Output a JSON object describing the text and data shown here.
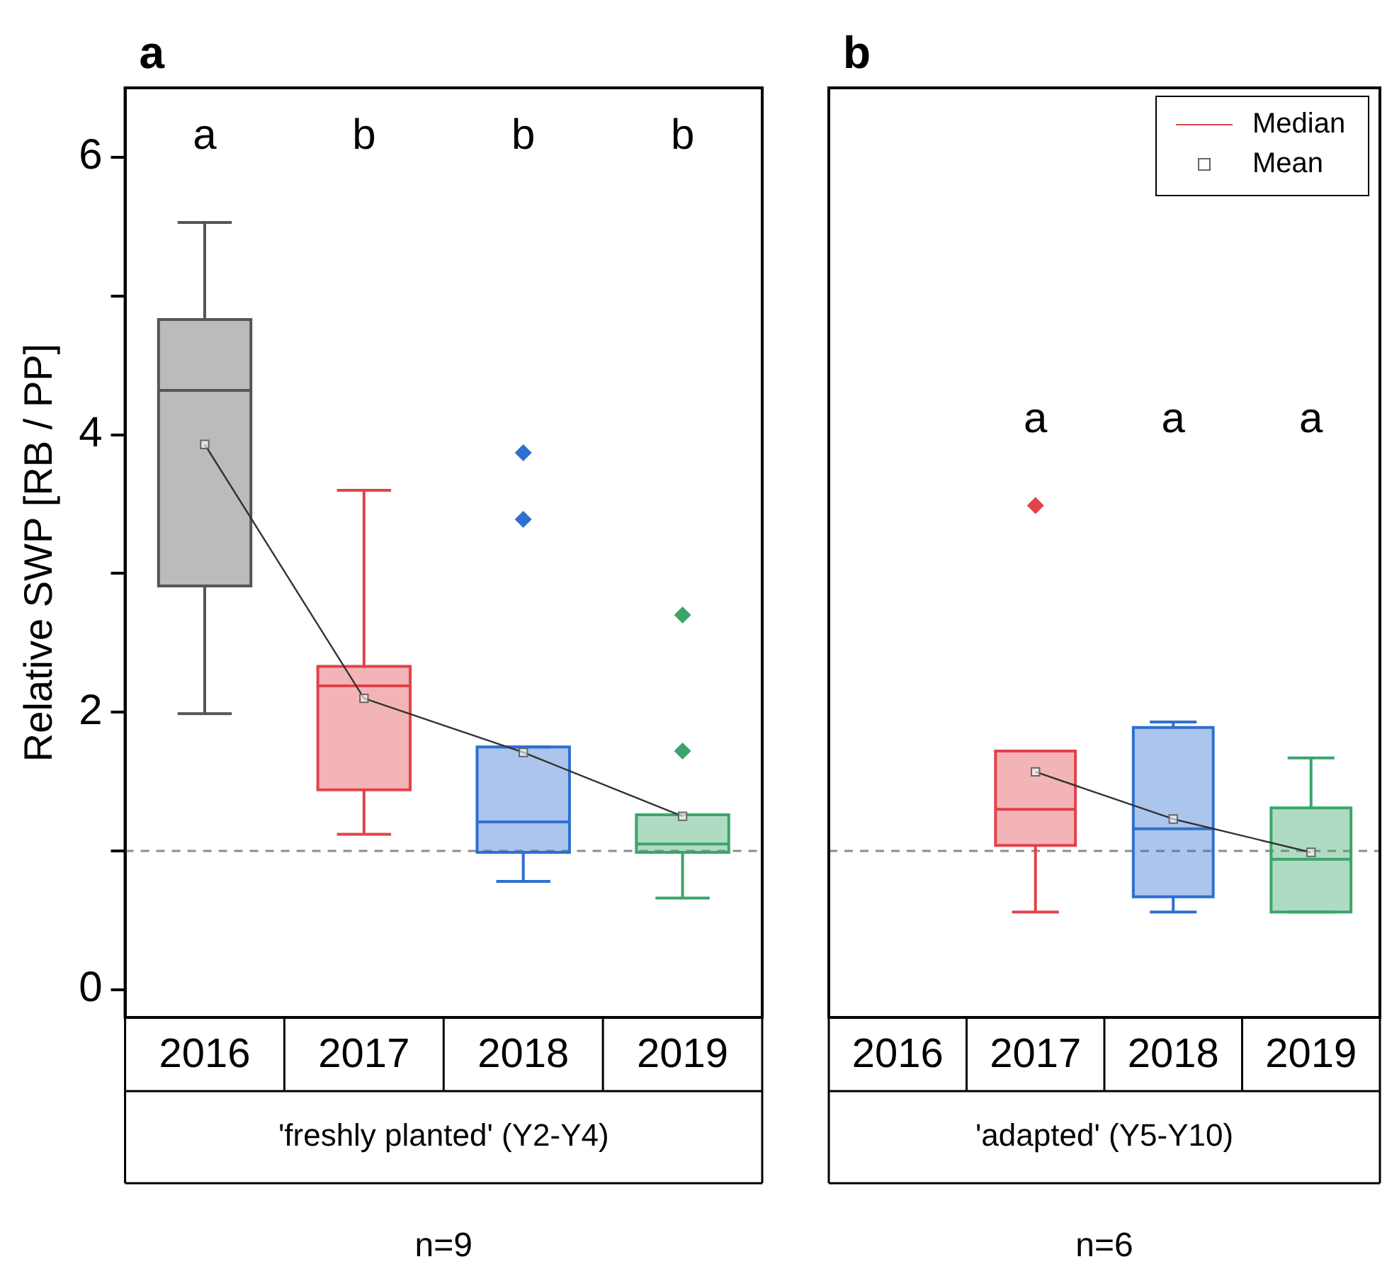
{
  "chart_data": [
    {
      "type": "box",
      "title": "a",
      "ylabel": "Relative SWP [RB / PP]",
      "xlabel": "'freshly planted' (Y2-Y4)",
      "categories": [
        "2016",
        "2017",
        "2018",
        "2019"
      ],
      "ylim": [
        -0.2,
        6.5
      ],
      "yticks": [
        0,
        {
          "value": 1,
          "label": null
        },
        2,
        {
          "value": 3,
          "label": null
        },
        4,
        {
          "value": 5,
          "label": null
        },
        6
      ],
      "ref_lines": [
        {
          "axis": "y",
          "value": 1,
          "color": "#8c8c8c",
          "line_style": "dashed"
        }
      ],
      "legend": false,
      "annotations": [
        "a",
        "b",
        "b",
        "b",
        "n=9"
      ],
      "series": [
        {
          "colors": [
            "#555555",
            "#e0434b",
            "#2f6fcf",
            "#3aa56a"
          ],
          "boxes": [
            {
              "low": 1.99,
              "q1": 2.91,
              "median": 4.32,
              "q3": 4.83,
              "high": 5.53
            },
            {
              "low": 1.12,
              "q1": 1.44,
              "median": 2.19,
              "q3": 2.33,
              "high": 3.6
            },
            {
              "low": 0.78,
              "q1": 0.99,
              "median": 1.21,
              "q3": 1.75,
              "high": 1.75,
              "outliers": [
                3.87,
                3.39
              ]
            },
            {
              "low": 0.66,
              "q1": 0.99,
              "median": 1.05,
              "q3": 1.26,
              "high": 1.26,
              "outliers": [
                2.7,
                1.72
              ]
            }
          ]
        },
        {
          "type": "line",
          "color": "#333333",
          "marker": "square",
          "values": [
            3.93,
            2.1,
            1.71,
            1.25
          ]
        }
      ]
    },
    {
      "type": "box",
      "title": "b",
      "xlabel": "'adapted' (Y5-Y10)",
      "categories": [
        "2016",
        "2017",
        "2018",
        "2019"
      ],
      "ylim": [
        -0.2,
        6.5
      ],
      "tick_labels": "x",
      "ref_lines": [
        {
          "axis": "y",
          "value": 1,
          "color": "#8c8c8c",
          "line_style": "dashed"
        }
      ],
      "legend": "top right",
      "annotations": [
        "a",
        "a",
        "a",
        "n=6"
      ],
      "series": [
        {
          "name": "Median",
          "colors": [
            null,
            "#e0434b",
            "#2f6fcf",
            "#3aa56a"
          ],
          "boxes": [
            null,
            {
              "low": 0.56,
              "q1": 1.04,
              "median": 1.3,
              "q3": 1.72,
              "high": 1.72,
              "outliers": [
                3.49
              ]
            },
            {
              "low": 0.56,
              "q1": 0.67,
              "median": 1.16,
              "q3": 1.89,
              "high": 1.93
            },
            {
              "low": 0.56,
              "q1": 0.56,
              "median": 0.94,
              "q3": 1.31,
              "high": 1.67
            }
          ]
        },
        {
          "type": "line",
          "name": "Mean",
          "color": "#333333",
          "marker": "square",
          "values": [
            null,
            1.57,
            1.23,
            0.99
          ]
        }
      ]
    }
  ]
}
